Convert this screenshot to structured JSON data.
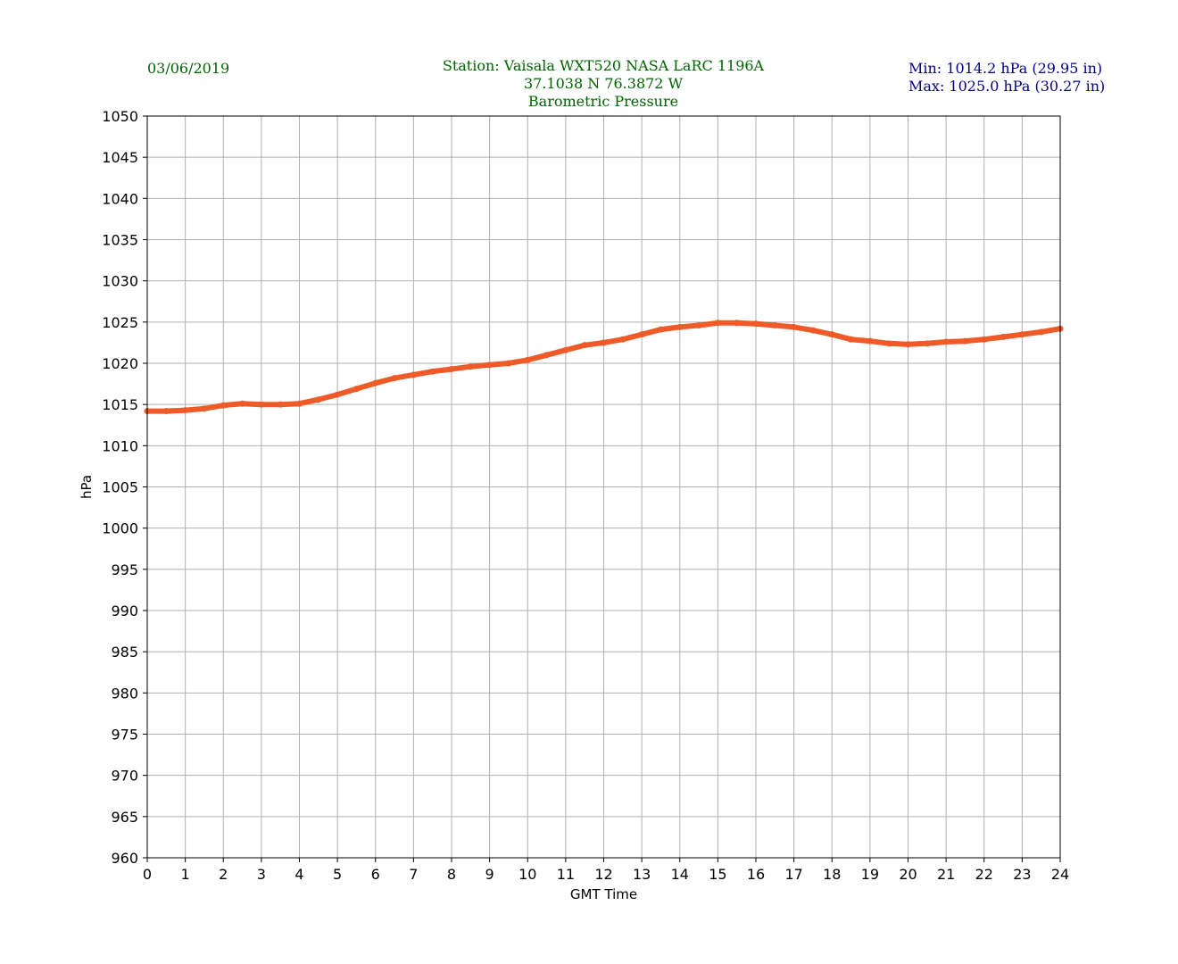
{
  "header": {
    "date": "03/06/2019",
    "station": "Station:  Vaisala WXT520  NASA LaRC 1196A",
    "coords": "37.1038 N 76.3872 W",
    "variable": "Barometric Pressure",
    "min": "Min: 1014.2 hPa (29.95 in)",
    "max": "Max: 1025.0 hPa (30.27 in)"
  },
  "colors": {
    "series": "#f05a28",
    "grid": "#b0b0b0",
    "header_green": "#006400",
    "header_blue": "#00008b"
  },
  "chart_data": {
    "type": "line",
    "title": "Barometric Pressure",
    "xlabel": "GMT Time",
    "ylabel": "hPa",
    "xlim": [
      0,
      24
    ],
    "ylim": [
      960,
      1050
    ],
    "xticks": [
      0,
      1,
      2,
      3,
      4,
      5,
      6,
      7,
      8,
      9,
      10,
      11,
      12,
      13,
      14,
      15,
      16,
      17,
      18,
      19,
      20,
      21,
      22,
      23,
      24
    ],
    "yticks": [
      960,
      965,
      970,
      975,
      980,
      985,
      990,
      995,
      1000,
      1005,
      1010,
      1015,
      1020,
      1025,
      1030,
      1035,
      1040,
      1045,
      1050
    ],
    "grid": true,
    "series": [
      {
        "x": [
          0,
          0.5,
          1,
          1.5,
          2,
          2.5,
          3,
          3.5,
          4,
          4.5,
          5,
          5.5,
          6,
          6.5,
          7,
          7.5,
          8,
          8.5,
          9,
          9.5,
          10,
          10.5,
          11,
          11.5,
          12,
          12.5,
          13,
          13.5,
          14,
          14.5,
          15,
          15.5,
          16,
          16.5,
          17,
          17.5,
          18,
          18.5,
          19,
          19.5,
          20,
          20.5,
          21,
          21.5,
          22,
          22.5,
          23,
          23.5,
          24
        ],
        "y": [
          1014.2,
          1014.2,
          1014.3,
          1014.5,
          1014.9,
          1015.1,
          1015.0,
          1015.0,
          1015.1,
          1015.6,
          1016.2,
          1016.9,
          1017.6,
          1018.2,
          1018.6,
          1019.0,
          1019.3,
          1019.6,
          1019.8,
          1020.0,
          1020.4,
          1021.0,
          1021.6,
          1022.2,
          1022.5,
          1022.9,
          1023.5,
          1024.1,
          1024.4,
          1024.6,
          1024.9,
          1024.9,
          1024.8,
          1024.6,
          1024.4,
          1024.0,
          1023.5,
          1022.9,
          1022.7,
          1022.4,
          1022.3,
          1022.4,
          1022.6,
          1022.7,
          1022.9,
          1023.2,
          1023.5,
          1023.8,
          1024.2
        ]
      }
    ]
  }
}
